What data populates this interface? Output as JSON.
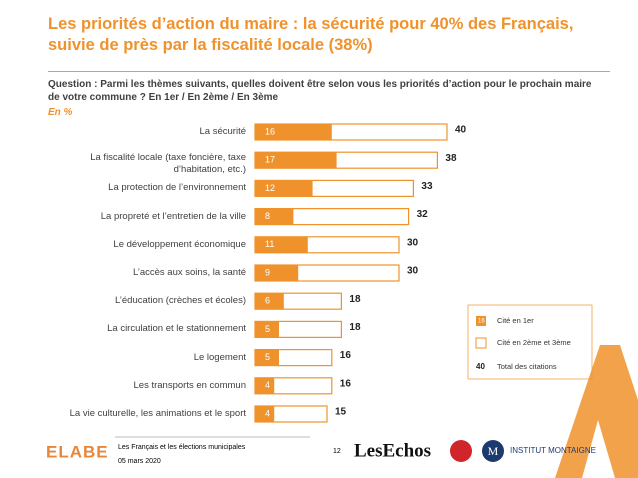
{
  "title": "Les priorités d’action du maire : la sécurité pour 40% des Français, suivie de près par la fiscalité locale (38%)",
  "question": "Question : Parmi les thèmes suivants, quelles doivent être selon vous les priorités d’action pour le prochain maire de votre commune ? En 1er / En 2ème / En 3ème",
  "unit_note": "En %",
  "chart_data": {
    "type": "bar",
    "categories": [
      "La sécurité",
      "La fiscalité locale (taxe foncière, taxe d’habitation, etc.)",
      "La protection de l’environnement",
      "La propreté et l’entretien de la ville",
      "Le développement économique",
      "L’accès aux soins, la santé",
      "L’éducation (crèches et écoles)",
      "La circulation et le stationnement",
      "Le logement",
      "Les transports en commun",
      "La vie culturelle, les animations et le sport"
    ],
    "series": [
      {
        "name": "Cité en 1er",
        "color": "#f0922b",
        "values": [
          16,
          17,
          12,
          8,
          11,
          9,
          6,
          5,
          5,
          4,
          4
        ]
      },
      {
        "name": "Total des citations",
        "color": "#f0922b",
        "values": [
          40,
          38,
          33,
          32,
          30,
          30,
          18,
          18,
          16,
          16,
          15
        ]
      }
    ],
    "legend": [
      {
        "label": "Cité en 1er",
        "sample": "16"
      },
      {
        "label": "Cité en 2ème et 3ème"
      },
      {
        "label": "Total des citations",
        "sample": "40"
      }
    ]
  },
  "footer": {
    "brand": "ELABE",
    "study": "Les Français et les élections municipales",
    "date": "05 mars 2020",
    "page": "12",
    "partner1": "LesEchos",
    "partner2": "INSTITUT MONTAIGNE",
    "partner2_initial": "M"
  }
}
